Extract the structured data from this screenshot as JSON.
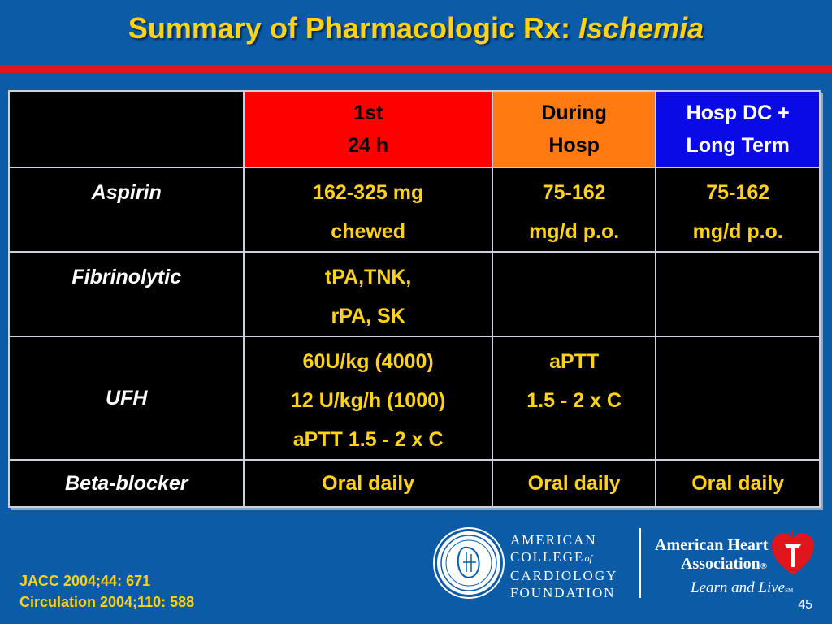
{
  "slide": {
    "title_main": "Summary of Pharmacologic Rx: ",
    "title_emph": "Ischemia",
    "page_number": "45"
  },
  "table": {
    "headers": [
      {
        "lines": [
          "",
          ""
        ]
      },
      {
        "lines": [
          "1st",
          "24 h"
        ],
        "color": "#ff0000"
      },
      {
        "lines": [
          "During",
          "Hosp"
        ],
        "color": "#ff7a10"
      },
      {
        "lines": [
          "Hosp DC +",
          "Long Term"
        ],
        "color": "#0a0ae6"
      }
    ],
    "rows": [
      {
        "drug": "Aspirin",
        "cells": [
          [
            "162-325 mg",
            "chewed"
          ],
          [
            "75-162",
            "mg/d p.o."
          ],
          [
            "75-162",
            "mg/d p.o."
          ]
        ]
      },
      {
        "drug": "Fibrinolytic",
        "cells": [
          [
            "tPA,TNK,",
            "rPA, SK"
          ],
          [],
          []
        ]
      },
      {
        "drug": "UFH",
        "cells": [
          [
            "60U/kg (4000)",
            "12 U/kg/h (1000)",
            "aPTT 1.5 - 2 x C"
          ],
          [
            "aPTT",
            "1.5 - 2 x C"
          ],
          []
        ]
      },
      {
        "drug": "Beta-blocker",
        "cells": [
          [
            "Oral daily"
          ],
          [
            "Oral daily"
          ],
          [
            "Oral daily"
          ]
        ]
      }
    ]
  },
  "references": [
    "JACC 2004;44: 671",
    "Circulation 2004;110: 588"
  ],
  "logos": {
    "acc": {
      "line1": "AMERICAN",
      "line2a": "COLLEGE",
      "line2b": "of",
      "line3": "CARDIOLOGY",
      "line4": "FOUNDATION",
      "icon": "acc-seal-icon"
    },
    "aha": {
      "line1": "American Heart",
      "line2": "Association",
      "reg": "®",
      "tagline": "Learn and Live",
      "tm": "SM",
      "icon": "heart-torch-icon"
    }
  }
}
